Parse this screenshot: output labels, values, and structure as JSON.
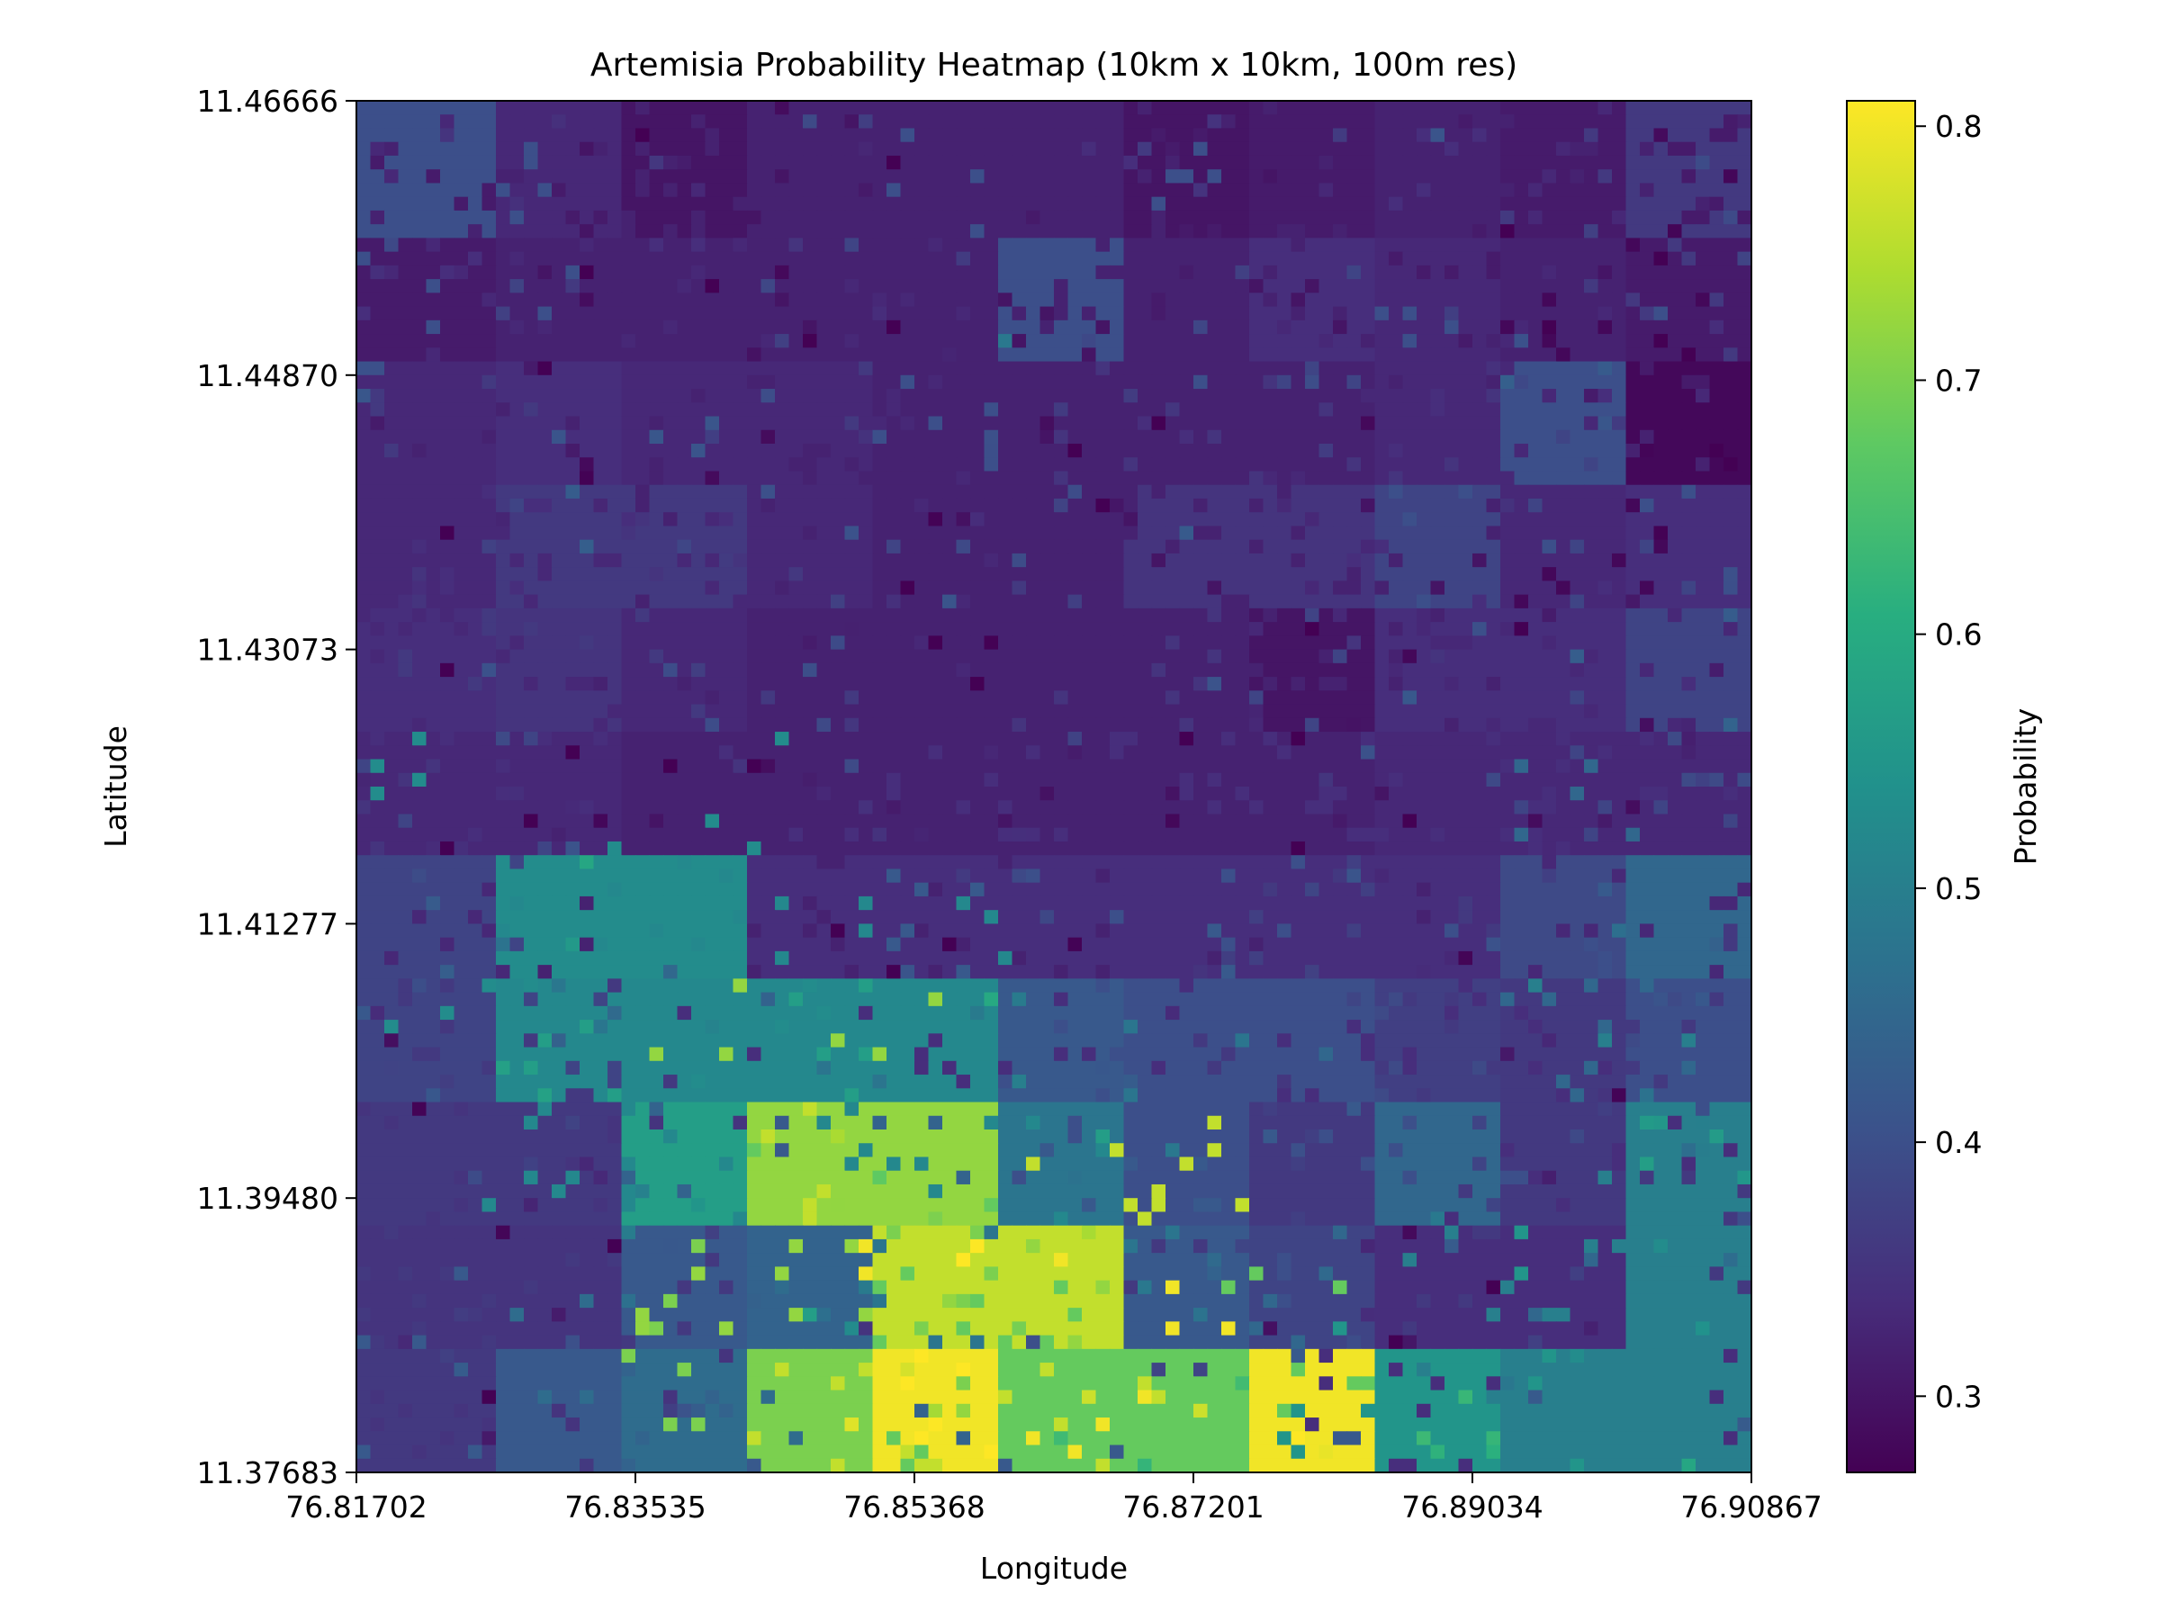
{
  "chart_data": {
    "type": "heatmap",
    "title": "Artemisia Probability Heatmap (10km x 10km, 100m res)",
    "xlabel": "Longitude",
    "ylabel": "Latitude",
    "x_tick_labels": [
      "76.81702",
      "76.83535",
      "76.85368",
      "76.87201",
      "76.89034",
      "76.90867"
    ],
    "y_tick_labels": [
      "11.46666",
      "11.44870",
      "11.43073",
      "11.41277",
      "11.39480",
      "11.37683"
    ],
    "xlim": [
      76.81702,
      76.90867
    ],
    "ylim": [
      11.37683,
      11.46666
    ],
    "grid_shape": {
      "rows": 100,
      "cols": 100,
      "block_rows": 11,
      "block_cols": 11
    },
    "colormap": "viridis",
    "colorbar": {
      "label": "Probability",
      "range": [
        0.27,
        0.81
      ],
      "tick_values": [
        0.3,
        0.4,
        0.5,
        0.6,
        0.7,
        0.8
      ],
      "tick_labels": [
        "0.3",
        "0.4",
        "0.5",
        "0.6",
        "0.7",
        "0.8"
      ]
    },
    "block_values": [
      [
        0.4,
        0.33,
        0.3,
        0.32,
        0.32,
        0.32,
        0.3,
        0.31,
        0.32,
        0.31,
        0.36
      ],
      [
        0.31,
        0.32,
        0.32,
        0.32,
        0.32,
        0.4,
        0.32,
        0.34,
        0.33,
        0.32,
        0.31
      ],
      [
        0.33,
        0.34,
        0.33,
        0.33,
        0.32,
        0.32,
        0.32,
        0.32,
        0.33,
        0.4,
        0.28
      ],
      [
        0.33,
        0.36,
        0.36,
        0.33,
        0.32,
        0.32,
        0.35,
        0.35,
        0.38,
        0.33,
        0.34
      ],
      [
        0.34,
        0.35,
        0.33,
        0.32,
        0.32,
        0.32,
        0.32,
        0.3,
        0.34,
        0.34,
        0.38
      ],
      [
        0.33,
        0.33,
        0.32,
        0.32,
        0.32,
        0.32,
        0.32,
        0.32,
        0.33,
        0.33,
        0.33
      ],
      [
        0.38,
        0.53,
        0.53,
        0.34,
        0.34,
        0.34,
        0.34,
        0.34,
        0.34,
        0.39,
        0.45
      ],
      [
        0.38,
        0.52,
        0.52,
        0.52,
        0.52,
        0.42,
        0.4,
        0.4,
        0.37,
        0.36,
        0.4
      ],
      [
        0.36,
        0.36,
        0.57,
        0.72,
        0.72,
        0.48,
        0.4,
        0.36,
        0.45,
        0.36,
        0.5
      ],
      [
        0.35,
        0.35,
        0.42,
        0.44,
        0.76,
        0.76,
        0.42,
        0.38,
        0.34,
        0.34,
        0.5
      ],
      [
        0.36,
        0.42,
        0.46,
        0.7,
        0.8,
        0.68,
        0.68,
        0.8,
        0.55,
        0.5,
        0.5
      ]
    ]
  }
}
